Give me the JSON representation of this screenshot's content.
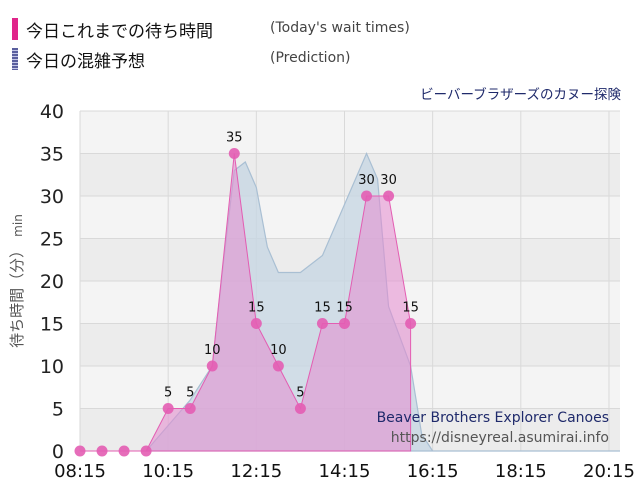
{
  "legend": {
    "actual": {
      "label": "今日これまでの待ち時間",
      "note": "(Today's wait times)",
      "color": "#e0258a"
    },
    "prediction": {
      "label": "今日の混雑予想",
      "note": "(Prediction)",
      "color": "#5a5f9e"
    }
  },
  "attraction_title": "ビーバーブラザーズのカヌー探険",
  "watermark": {
    "line1": "Beaver Brothers Explorer Canoes",
    "line2": "https://disneyreal.asumirai.info"
  },
  "chart_data": {
    "type": "area",
    "ylabel": "待ち時間（分）",
    "yunit": "min",
    "ylim": [
      0,
      40
    ],
    "yticks": [
      0,
      5,
      10,
      15,
      20,
      25,
      30,
      35,
      40
    ],
    "xticks": [
      "08:15",
      "10:15",
      "12:15",
      "14:15",
      "16:15",
      "18:15",
      "20:15"
    ],
    "xlim": [
      "08:15",
      "20:30"
    ],
    "grid": true,
    "series": [
      {
        "name": "今日これまでの待ち時間",
        "kind": "actual",
        "color": "#e35db2",
        "times": [
          "08:15",
          "08:45",
          "09:15",
          "09:45",
          "10:15",
          "10:45",
          "11:15",
          "11:45",
          "12:15",
          "12:45",
          "13:15",
          "13:45",
          "14:15",
          "14:45",
          "15:15",
          "15:45"
        ],
        "values": [
          0,
          0,
          0,
          0,
          5,
          5,
          10,
          35,
          15,
          10,
          5,
          15,
          15,
          30,
          30,
          15
        ],
        "labels": [
          "",
          "",
          "",
          "",
          "5",
          "5",
          "10",
          "35",
          "15",
          "10",
          "5",
          "15",
          "15",
          "30",
          "30",
          "15"
        ]
      },
      {
        "name": "今日の混雑予想",
        "kind": "prediction",
        "color": "#a9bfd3",
        "times": [
          "09:45",
          "10:15",
          "10:45",
          "11:15",
          "11:30",
          "11:45",
          "12:00",
          "12:15",
          "12:30",
          "12:45",
          "13:15",
          "13:45",
          "14:15",
          "14:45",
          "15:00",
          "15:15",
          "15:45",
          "16:00",
          "16:15",
          "20:30"
        ],
        "values": [
          0,
          3,
          6,
          10,
          22,
          33,
          34,
          31,
          24,
          21,
          21,
          23,
          29,
          35,
          32,
          17,
          10,
          2,
          0,
          0
        ]
      }
    ]
  }
}
